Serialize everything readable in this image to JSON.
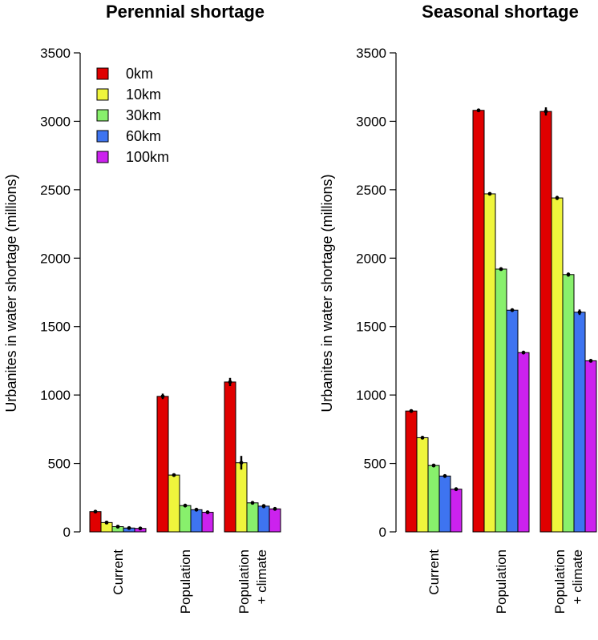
{
  "chart_data": [
    {
      "type": "bar",
      "title": "Perennial shortage",
      "ylabel": "Urbanites in water shortage (millions)",
      "xlabel": "",
      "ylim": [
        0,
        3500
      ],
      "yticks": [
        0,
        500,
        1000,
        1500,
        2000,
        2500,
        3000,
        3500
      ],
      "categories": [
        [
          "Current"
        ],
        [
          "Population"
        ],
        [
          "Population",
          "+ climate"
        ]
      ],
      "legend": {
        "position": "top-left"
      },
      "series": [
        {
          "name": "0km",
          "color": "#e00000",
          "values": [
            148,
            990,
            1095
          ],
          "err": [
            6,
            20,
            30
          ]
        },
        {
          "name": "10km",
          "color": "#eff53c",
          "values": [
            68,
            415,
            505
          ],
          "err": [
            4,
            10,
            50
          ]
        },
        {
          "name": "30km",
          "color": "#88f06c",
          "values": [
            38,
            192,
            212
          ],
          "err": [
            4,
            8,
            12
          ]
        },
        {
          "name": "60km",
          "color": "#3e74f0",
          "values": [
            28,
            162,
            188
          ],
          "err": [
            3,
            6,
            15
          ]
        },
        {
          "name": "100km",
          "color": "#cc22ee",
          "values": [
            25,
            143,
            168
          ],
          "err": [
            3,
            5,
            10
          ]
        }
      ]
    },
    {
      "type": "bar",
      "title": "Seasonal shortage",
      "ylabel": "Urbanites in water shortage (millions)",
      "xlabel": "",
      "ylim": [
        0,
        3500
      ],
      "yticks": [
        0,
        500,
        1000,
        1500,
        2000,
        2500,
        3000,
        3500
      ],
      "categories": [
        [
          "Current"
        ],
        [
          "Population"
        ],
        [
          "Population",
          "+ climate"
        ]
      ],
      "series": [
        {
          "name": "0km",
          "color": "#e00000",
          "values": [
            883,
            3080,
            3072
          ],
          "err": [
            3,
            12,
            30
          ]
        },
        {
          "name": "10km",
          "color": "#eff53c",
          "values": [
            688,
            2470,
            2440
          ],
          "err": [
            3,
            5,
            15
          ]
        },
        {
          "name": "30km",
          "color": "#88f06c",
          "values": [
            485,
            1920,
            1880
          ],
          "err": [
            3,
            5,
            15
          ]
        },
        {
          "name": "60km",
          "color": "#3e74f0",
          "values": [
            408,
            1620,
            1605
          ],
          "err": [
            3,
            8,
            20
          ]
        },
        {
          "name": "100km",
          "color": "#cc22ee",
          "values": [
            312,
            1310,
            1250
          ],
          "err": [
            3,
            4,
            5
          ]
        }
      ]
    }
  ]
}
